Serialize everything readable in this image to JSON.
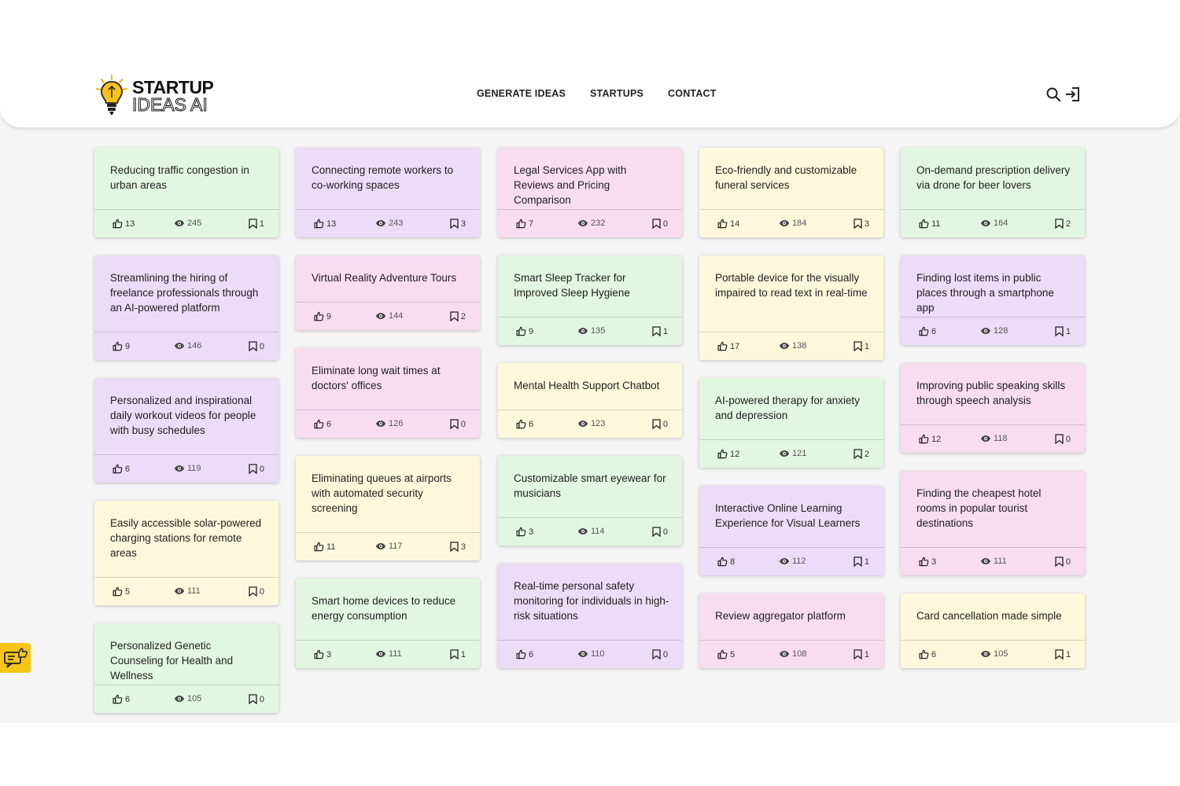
{
  "brand": {
    "line1": "STARTUP",
    "line2": "IDEAS AI"
  },
  "nav": {
    "items": [
      "GENERATE IDEAS",
      "STARTUPS",
      "CONTACT"
    ]
  },
  "header_icons": [
    "search-icon",
    "login-icon"
  ],
  "feedback": {
    "icon": "feedback-icon",
    "color": "#f5c518"
  },
  "columns": [
    [
      {
        "title": "Reducing traffic congestion in urban areas",
        "likes": "13",
        "views": "245",
        "saves": "1",
        "color": "green"
      },
      {
        "title": "Streamlining the hiring of freelance professionals through an AI-powered platform",
        "likes": "9",
        "views": "146",
        "saves": "0",
        "color": "purple"
      },
      {
        "title": "Personalized and inspirational daily workout videos for people with busy schedules",
        "likes": "6",
        "views": "119",
        "saves": "0",
        "color": "purple"
      },
      {
        "title": "Easily accessible solar-powered charging stations for remote areas",
        "likes": "5",
        "views": "111",
        "saves": "0",
        "color": "yellow"
      },
      {
        "title": "Personalized Genetic Counseling for Health and Wellness",
        "likes": "6",
        "views": "105",
        "saves": "0",
        "color": "green"
      }
    ],
    [
      {
        "title": "Connecting remote workers to co-working spaces",
        "likes": "13",
        "views": "243",
        "saves": "3",
        "color": "purple"
      },
      {
        "title": "Virtual Reality Adventure Tours",
        "likes": "9",
        "views": "144",
        "saves": "2",
        "color": "pink"
      },
      {
        "title": "Eliminate long wait times at doctors' offices",
        "likes": "6",
        "views": "126",
        "saves": "0",
        "color": "pink"
      },
      {
        "title": "Eliminating queues at airports with automated security screening",
        "likes": "11",
        "views": "117",
        "saves": "3",
        "color": "yellow"
      },
      {
        "title": "Smart home devices to reduce energy consumption",
        "likes": "3",
        "views": "111",
        "saves": "1",
        "color": "green"
      }
    ],
    [
      {
        "title": "Legal Services App with Reviews and Pricing Comparison",
        "likes": "7",
        "views": "232",
        "saves": "0",
        "color": "pink"
      },
      {
        "title": "Smart Sleep Tracker for Improved Sleep Hygiene",
        "likes": "9",
        "views": "135",
        "saves": "1",
        "color": "green"
      },
      {
        "title": "Mental Health Support Chatbot",
        "likes": "6",
        "views": "123",
        "saves": "0",
        "color": "yellow"
      },
      {
        "title": "Customizable smart eyewear for musicians",
        "likes": "3",
        "views": "114",
        "saves": "0",
        "color": "green"
      },
      {
        "title": "Real-time personal safety monitoring for individuals in high-risk situations",
        "likes": "6",
        "views": "110",
        "saves": "0",
        "color": "purple"
      }
    ],
    [
      {
        "title": "Eco-friendly and customizable funeral services",
        "likes": "14",
        "views": "184",
        "saves": "3",
        "color": "yellow"
      },
      {
        "title": "Portable device for the visually impaired to read text in real-time",
        "likes": "17",
        "views": "138",
        "saves": "1",
        "color": "yellow"
      },
      {
        "title": "AI-powered therapy for anxiety and depression",
        "likes": "12",
        "views": "121",
        "saves": "2",
        "color": "green"
      },
      {
        "title": "Interactive Online Learning Experience for Visual Learners",
        "likes": "8",
        "views": "112",
        "saves": "1",
        "color": "purple"
      },
      {
        "title": "Review aggregator platform",
        "likes": "5",
        "views": "108",
        "saves": "1",
        "color": "pink"
      }
    ],
    [
      {
        "title": "On-demand prescription delivery via drone for beer lovers",
        "likes": "11",
        "views": "164",
        "saves": "2",
        "color": "green"
      },
      {
        "title": "Finding lost items in public places through a smartphone app",
        "likes": "6",
        "views": "128",
        "saves": "1",
        "color": "purple"
      },
      {
        "title": "Improving public speaking skills through speech analysis",
        "likes": "12",
        "views": "118",
        "saves": "0",
        "color": "pink"
      },
      {
        "title": "Finding the cheapest hotel rooms in popular tourist destinations",
        "likes": "3",
        "views": "111",
        "saves": "0",
        "color": "pink"
      },
      {
        "title": "Card cancellation made simple",
        "likes": "6",
        "views": "105",
        "saves": "1",
        "color": "yellow"
      }
    ]
  ]
}
